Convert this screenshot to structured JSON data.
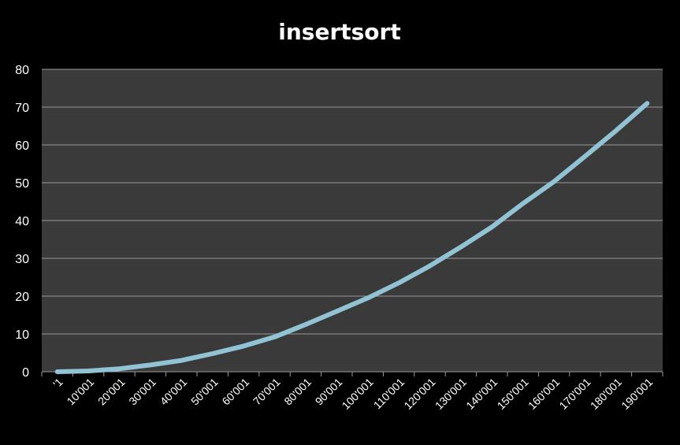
{
  "chart_data": {
    "type": "line",
    "title": "insertsort",
    "xlabel": "",
    "ylabel": "",
    "ylim": [
      0,
      80
    ],
    "yticks": [
      "0",
      "10",
      "20",
      "30",
      "40",
      "50",
      "60",
      "70",
      "80"
    ],
    "grid": true,
    "legend": "none",
    "categories": [
      "'1",
      "10'001",
      "20'001",
      "30'001",
      "40'001",
      "50'001",
      "60'001",
      "70'001",
      "80'001",
      "90'001",
      "100'001",
      "110'001",
      "120'001",
      "130'001",
      "140'001",
      "150'001",
      "160'001",
      "170'001",
      "180'001",
      "190'001"
    ],
    "series": [
      {
        "values": [
          0,
          0.2,
          0.8,
          1.8,
          3.0,
          4.8,
          6.8,
          9.2,
          12.5,
          16.0,
          19.5,
          23.5,
          28.0,
          33.0,
          38.3,
          44.5,
          50.3,
          57.0,
          63.8,
          71.0
        ]
      }
    ],
    "colors": {
      "background": "#000000",
      "plot_area": "#3a3a3a",
      "line": "#91c3d5",
      "grid": "#9a9a9a",
      "text": "#ffffff"
    }
  }
}
